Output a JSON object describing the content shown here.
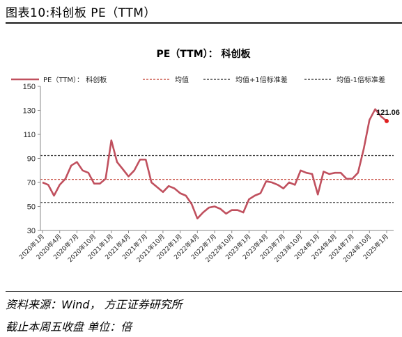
{
  "figure_title": "图表10:科创板 PE（TTM）",
  "footer": {
    "source": "资料来源：Wind， 方正证券研究所",
    "note": "截止本周五收盘 单位：倍"
  },
  "colors": {
    "series": "#c0505e",
    "mean": "#c0392b",
    "band": "#222222",
    "axis": "#888888"
  },
  "chart_data": {
    "type": "line",
    "title": "PE（TTM）： 科创板",
    "legend_position": "top",
    "grid": false,
    "ylim": [
      30,
      150
    ],
    "yticks": [
      30,
      50,
      70,
      90,
      110,
      130,
      150
    ],
    "xtick_labels": [
      "2020年1月",
      "2020年4月",
      "2020年7月",
      "2020年10月",
      "2021年1月",
      "2021年4月",
      "2021年7月",
      "2021年10月",
      "2022年1月",
      "2022年4月",
      "2022年7月",
      "2022年10月",
      "2023年1月",
      "2023年4月",
      "2023年7月",
      "2023年10月",
      "2024年1月",
      "2024年4月",
      "2024年7月",
      "2024年10月",
      "2025年1月"
    ],
    "series": [
      {
        "name": "PE（TTM）： 科创板",
        "values": [
          70,
          68,
          59,
          68,
          73,
          84,
          87,
          80,
          78,
          69,
          69,
          73,
          105,
          87,
          81,
          75,
          80,
          89,
          89,
          70,
          66,
          62,
          67,
          65,
          61,
          59,
          52,
          40,
          45,
          49,
          50,
          48,
          44,
          47,
          47,
          45,
          56,
          59,
          61,
          71,
          70,
          68,
          65,
          70,
          68,
          80,
          78,
          77,
          60,
          79,
          77,
          78,
          78,
          73,
          73,
          78,
          98,
          122,
          131,
          125,
          121.06
        ]
      }
    ],
    "reference_lines": [
      {
        "name": "均值",
        "value": 72.5
      },
      {
        "name": "均值+1倍标准差",
        "value": 92.3
      },
      {
        "name": "均值-1倍标准差",
        "value": 53.3
      }
    ],
    "annotations": [
      {
        "text": "121.06"
      }
    ]
  }
}
